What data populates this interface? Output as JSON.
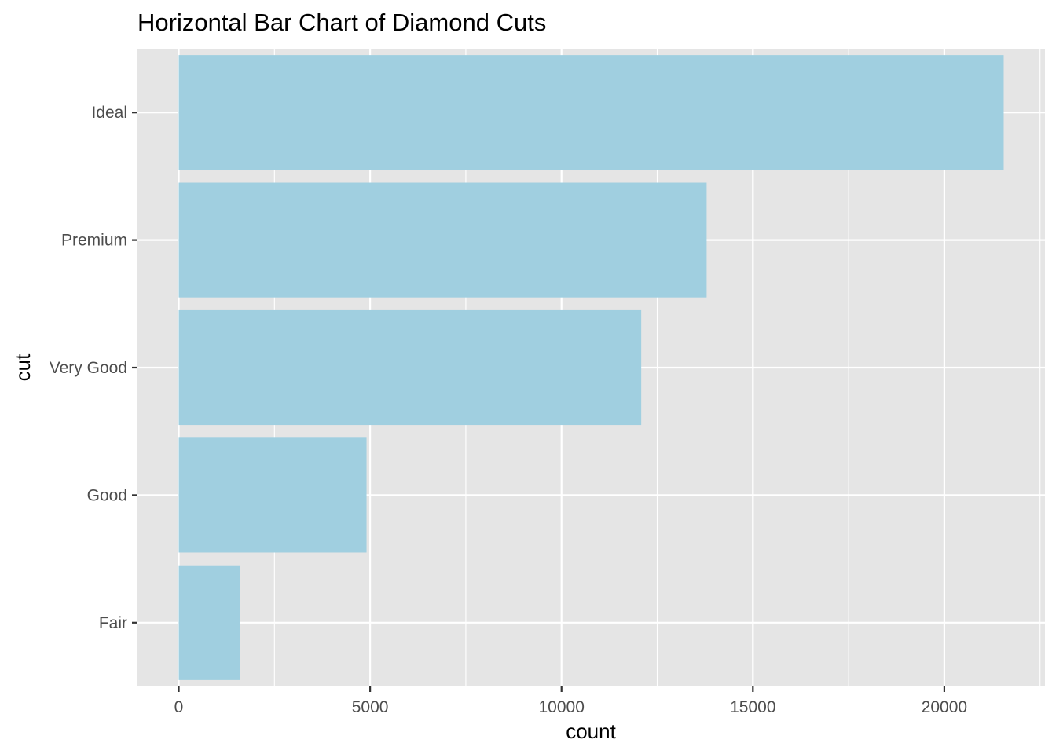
{
  "chart_data": {
    "type": "bar",
    "orientation": "horizontal",
    "title": "Horizontal Bar Chart of Diamond Cuts",
    "xlabel": "count",
    "ylabel": "cut",
    "categories": [
      "Fair",
      "Good",
      "Very Good",
      "Premium",
      "Ideal"
    ],
    "values": [
      1610,
      4906,
      12082,
      13791,
      21551
    ],
    "xlim": [
      -1078,
      22629
    ],
    "x_ticks": [
      0,
      5000,
      10000,
      15000,
      20000
    ],
    "x_tick_labels": [
      "0",
      "5000",
      "10000",
      "15000",
      "20000"
    ],
    "grid": true,
    "legend": "none",
    "colors": {
      "bar_fill": "#a0cfe0",
      "panel_background": "#e5e5e5",
      "grid_line": "#ffffff",
      "tick_label": "#4d4d4d",
      "tick_mark": "#333333"
    }
  }
}
